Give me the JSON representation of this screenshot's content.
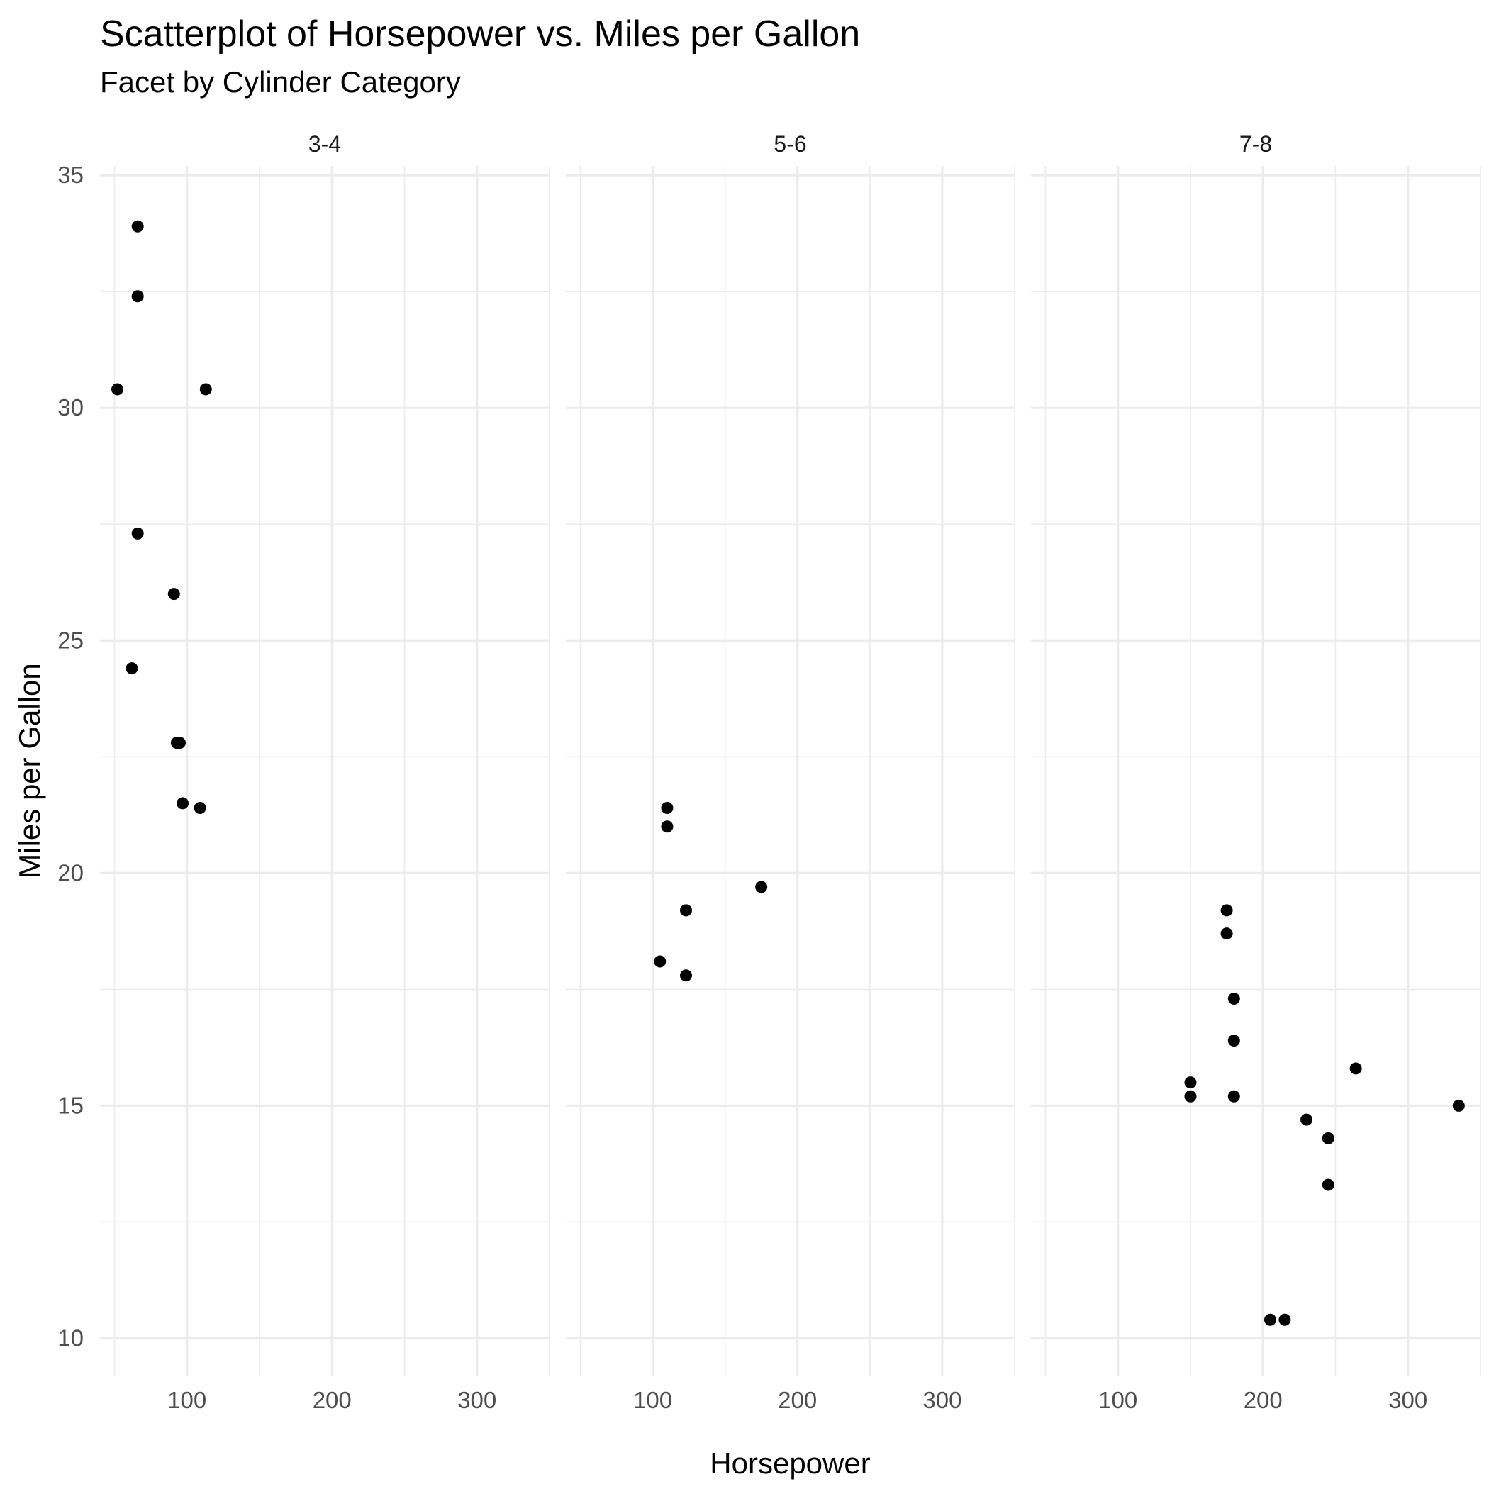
{
  "chart_data": {
    "type": "scatter",
    "title": "Scatterplot of Horsepower vs. Miles per Gallon",
    "subtitle": "Facet by Cylinder Category",
    "xlabel": "Horsepower",
    "ylabel": "Miles per Gallon",
    "xlim": [
      40,
      350
    ],
    "ylim": [
      9.2,
      35.2
    ],
    "x_ticks": [
      100,
      200,
      300
    ],
    "y_ticks": [
      10,
      15,
      20,
      25,
      30,
      35
    ],
    "grid": true,
    "facets": [
      {
        "label": "3-4",
        "points": [
          {
            "x": 66,
            "y": 33.9
          },
          {
            "x": 66,
            "y": 32.4
          },
          {
            "x": 52,
            "y": 30.4
          },
          {
            "x": 113,
            "y": 30.4
          },
          {
            "x": 66,
            "y": 27.3
          },
          {
            "x": 91,
            "y": 26.0
          },
          {
            "x": 62,
            "y": 24.4
          },
          {
            "x": 93,
            "y": 22.8
          },
          {
            "x": 95,
            "y": 22.8
          },
          {
            "x": 97,
            "y": 21.5
          },
          {
            "x": 109,
            "y": 21.4
          }
        ]
      },
      {
        "label": "5-6",
        "points": [
          {
            "x": 110,
            "y": 21.4
          },
          {
            "x": 110,
            "y": 21.0
          },
          {
            "x": 175,
            "y": 19.7
          },
          {
            "x": 123,
            "y": 19.2
          },
          {
            "x": 105,
            "y": 18.1
          },
          {
            "x": 123,
            "y": 17.8
          }
        ]
      },
      {
        "label": "7-8",
        "points": [
          {
            "x": 175,
            "y": 19.2
          },
          {
            "x": 175,
            "y": 18.7
          },
          {
            "x": 180,
            "y": 17.3
          },
          {
            "x": 180,
            "y": 16.4
          },
          {
            "x": 264,
            "y": 15.8
          },
          {
            "x": 150,
            "y": 15.5
          },
          {
            "x": 150,
            "y": 15.2
          },
          {
            "x": 180,
            "y": 15.2
          },
          {
            "x": 335,
            "y": 15.0
          },
          {
            "x": 230,
            "y": 14.7
          },
          {
            "x": 245,
            "y": 14.3
          },
          {
            "x": 245,
            "y": 13.3
          },
          {
            "x": 205,
            "y": 10.4
          },
          {
            "x": 215,
            "y": 10.4
          }
        ]
      }
    ]
  }
}
